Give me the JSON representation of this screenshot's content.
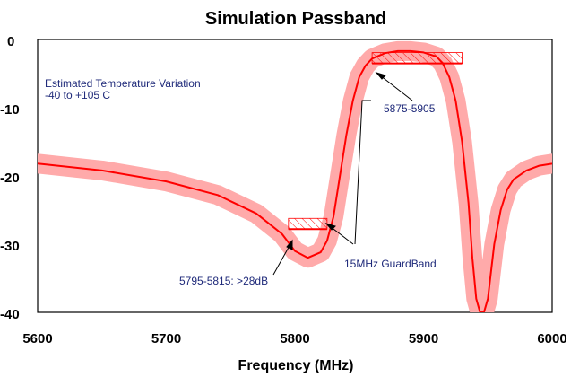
{
  "chart_data": {
    "type": "line",
    "title": "Simulation Passband",
    "xlabel": "Frequency (MHz)",
    "ylabel": "",
    "xlim": [
      5600,
      6000
    ],
    "ylim": [
      -40,
      0
    ],
    "x_ticks": [
      "5600",
      "5700",
      "5800",
      "5900",
      "6000"
    ],
    "y_ticks": [
      "0",
      "-10",
      "-20",
      "-30",
      "-40"
    ],
    "grid": false,
    "colors": {
      "line": "#ff0000",
      "band": "#ffaaaa",
      "spec": "#ff0000",
      "text": "#1f2a7a"
    },
    "series": [
      {
        "x": [
          5600,
          5650,
          5700,
          5740,
          5770,
          5790,
          5800,
          5810,
          5820,
          5825,
          5830,
          5835,
          5840,
          5845,
          5850,
          5855,
          5860,
          5870,
          5880,
          5890,
          5900,
          5910,
          5915,
          5920,
          5925,
          5930,
          5935,
          5938,
          5941,
          5944,
          5947,
          5950,
          5955,
          5960,
          5965,
          5970,
          5980,
          5990,
          6000
        ],
        "values": [
          -18.2,
          -19.2,
          -20.8,
          -22.8,
          -25.5,
          -28.5,
          -31.0,
          -32.0,
          -31.2,
          -29.5,
          -26.0,
          -20.0,
          -14.0,
          -9.0,
          -5.5,
          -3.8,
          -2.8,
          -2.0,
          -1.7,
          -1.7,
          -1.9,
          -2.5,
          -3.5,
          -5.5,
          -9.0,
          -15.0,
          -24.0,
          -32.0,
          -38.0,
          -40.0,
          -40.0,
          -38.0,
          -30.0,
          -25.0,
          -22.0,
          -20.5,
          -19.2,
          -18.5,
          -18.2
        ]
      }
    ],
    "specs": [
      {
        "x": [
          5795,
          5825
        ],
        "y": -27.8
      },
      {
        "x": [
          5860,
          5930
        ],
        "y": -3.5
      }
    ],
    "annotations": [
      "Estimated Temperature Variation",
      "-40 to +105 C",
      "5875-5905",
      "15MHz GuardBand",
      "5795-5815: >28dB"
    ]
  }
}
